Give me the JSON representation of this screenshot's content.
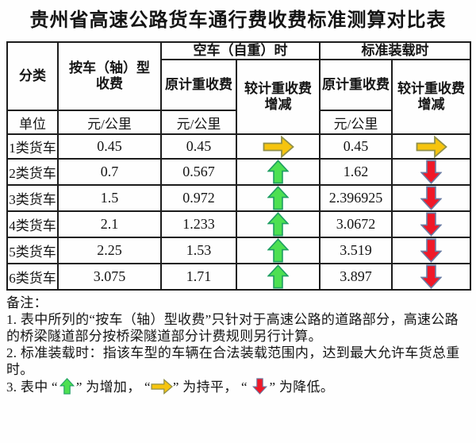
{
  "title": "贵州省高速公路货车通行费收费标准测算对比表",
  "table": {
    "headers": {
      "category": "分类",
      "axle_type": "按车（轴）型\n收费",
      "empty_group": "空车（自重）时",
      "loaded_group": "标准装载时",
      "orig_weight": "原计重收费",
      "vs_weight": "较计重收费\n增减"
    },
    "unit_row": {
      "label": "单位",
      "axle_unit": "元/公里",
      "empty_unit": "元/公里",
      "loaded_unit": "元/公里"
    },
    "rows": [
      {
        "category": "1类货车",
        "axle": "0.45",
        "empty_orig": "0.45",
        "empty_trend": "flat",
        "loaded_orig": "0.45",
        "loaded_trend": "flat"
      },
      {
        "category": "2类货车",
        "axle": "0.7",
        "empty_orig": "0.567",
        "empty_trend": "up",
        "loaded_orig": "1.62",
        "loaded_trend": "down"
      },
      {
        "category": "3类货车",
        "axle": "1.5",
        "empty_orig": "0.972",
        "empty_trend": "up",
        "loaded_orig": "2.396925",
        "loaded_trend": "down"
      },
      {
        "category": "4类货车",
        "axle": "2.1",
        "empty_orig": "1.233",
        "empty_trend": "up",
        "loaded_orig": "3.0672",
        "loaded_trend": "down"
      },
      {
        "category": "5类货车",
        "axle": "2.25",
        "empty_orig": "1.53",
        "empty_trend": "up",
        "loaded_orig": "3.519",
        "loaded_trend": "down"
      },
      {
        "category": "6类货车",
        "axle": "3.075",
        "empty_orig": "1.71",
        "empty_trend": "up",
        "loaded_orig": "3.897",
        "loaded_trend": "down"
      }
    ]
  },
  "notes": {
    "label": "备注：",
    "note1": "1. 表中所列的“按车（轴）型收费”只针对于高速公路的道路部分，高速公路的桥梁隧道部分按桥梁隧道部分计费规则另行计算。",
    "note2": "2. 标准装载时：指该车型的车辆在合法装载范围内，达到最大允许车货总重时。",
    "note3_parts": {
      "prefix": "3. 表中 “",
      "up_suffix": "” 为增加， “",
      "flat_suffix": "” 为持平， “ ",
      "down_suffix": "” 为降低。"
    },
    "trend_meanings": {
      "up": "增加",
      "flat": "持平",
      "down": "降低"
    }
  },
  "colors": {
    "up_fill": "#4de052",
    "up_stroke": "#1f9e63",
    "flat_fill": "#f6c40e",
    "flat_stroke": "#8f8f4a",
    "down_fill": "#f01828",
    "down_stroke": "#6a7ba2",
    "border": "#1c1c1c"
  }
}
